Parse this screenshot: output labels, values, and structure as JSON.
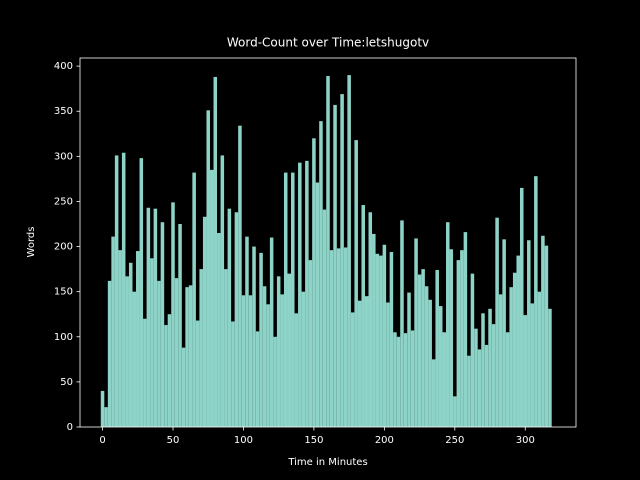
{
  "chart_data": {
    "type": "bar",
    "title": "Word-Count over Time:letshugotv",
    "xlabel": "Time in Minutes",
    "ylabel": "Words",
    "color": "#8dd3c7",
    "bar_width": 2.5,
    "x": [
      0,
      2.5,
      5,
      7.5,
      10,
      12.5,
      15,
      17.5,
      20,
      22.5,
      25,
      27.5,
      30,
      32.5,
      35,
      37.5,
      40,
      42.5,
      45,
      47.5,
      50,
      52.5,
      55,
      57.5,
      60,
      62.5,
      65,
      67.5,
      70,
      72.5,
      75,
      77.5,
      80,
      82.5,
      85,
      87.5,
      90,
      92.5,
      95,
      97.5,
      100,
      102.5,
      105,
      107.5,
      110,
      112.5,
      115,
      117.5,
      120,
      122.5,
      125,
      127.5,
      130,
      132.5,
      135,
      137.5,
      140,
      142.5,
      145,
      147.5,
      150,
      152.5,
      155,
      157.5,
      160,
      162.5,
      165,
      167.5,
      170,
      172.5,
      175,
      177.5,
      180,
      182.5,
      185,
      187.5,
      190,
      192.5,
      195,
      197.5,
      200,
      202.5,
      205,
      207.5,
      210,
      212.5,
      215,
      217.5,
      220,
      222.5,
      225,
      227.5,
      230,
      232.5,
      235,
      237.5,
      240,
      242.5,
      245,
      247.5,
      250,
      252.5,
      255,
      257.5,
      260,
      262.5,
      265,
      267.5,
      270,
      272.5,
      275,
      277.5,
      280,
      282.5,
      285,
      287.5,
      290,
      292.5,
      295,
      297.5,
      300,
      302.5,
      305,
      307.5,
      310,
      312.5,
      315,
      317.5
    ],
    "values": [
      40,
      22,
      162,
      211,
      301,
      196,
      304,
      167,
      182,
      150,
      195,
      298,
      120,
      243,
      187,
      242,
      162,
      227,
      113,
      125,
      249,
      165,
      225,
      88,
      155,
      157,
      282,
      118,
      175,
      233,
      351,
      285,
      388,
      215,
      301,
      175,
      242,
      117,
      238,
      334,
      146,
      211,
      146,
      200,
      106,
      193,
      156,
      136,
      210,
      100,
      167,
      147,
      282,
      170,
      282,
      126,
      293,
      150,
      295,
      185,
      320,
      271,
      339,
      241,
      389,
      196,
      357,
      198,
      369,
      199,
      390,
      127,
      318,
      140,
      246,
      145,
      238,
      214,
      192,
      190,
      202,
      138,
      194,
      105,
      100,
      229,
      104,
      149,
      107,
      209,
      169,
      175,
      156,
      141,
      75,
      174,
      134,
      105,
      227,
      197,
      34,
      185,
      196,
      216,
      79,
      170,
      109,
      86,
      126,
      91,
      131,
      114,
      232,
      147,
      208,
      105,
      155,
      171,
      190,
      265,
      124,
      207,
      137,
      278,
      150,
      212,
      201,
      131
    ],
    "xlim": [
      -16,
      336
    ],
    "ylim": [
      0,
      409
    ],
    "xticks": [
      0,
      50,
      100,
      150,
      200,
      250,
      300
    ],
    "yticks": [
      0,
      50,
      100,
      150,
      200,
      250,
      300,
      350,
      400
    ]
  }
}
